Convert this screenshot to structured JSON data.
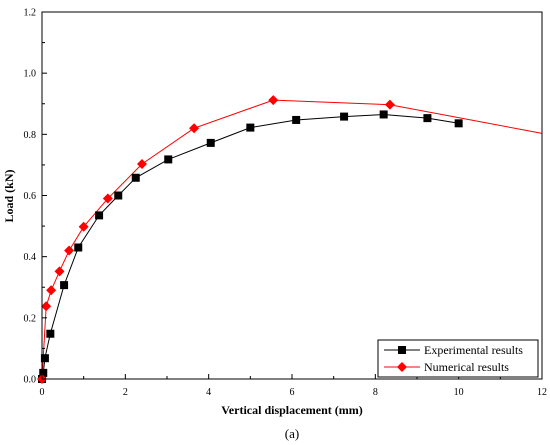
{
  "chart_data": {
    "type": "line",
    "xlabel": "Vertical displacement (mm)",
    "ylabel": "Load (kN)",
    "xlim": [
      0,
      12
    ],
    "ylim": [
      0,
      1.2
    ],
    "xticks": [
      "0",
      "2",
      "4",
      "6",
      "8",
      "10",
      "12"
    ],
    "yticks": [
      "0.0",
      "0.2",
      "0.4",
      "0.6",
      "0.8",
      "1.0",
      "1.2"
    ],
    "grid": false,
    "legend_position": "bottom-right",
    "caption": "(a)",
    "series": [
      {
        "name": "Experimental results",
        "color": "#000000",
        "marker": "square",
        "marker_color": "#000000",
        "x": [
          0.0,
          0.03,
          0.07,
          0.2,
          0.53,
          0.87,
          1.37,
          1.83,
          2.25,
          3.03,
          4.05,
          5.0,
          6.1,
          7.25,
          8.2,
          9.25,
          10.0
        ],
        "y": [
          0.0,
          0.02,
          0.068,
          0.148,
          0.307,
          0.43,
          0.535,
          0.6,
          0.658,
          0.718,
          0.772,
          0.822,
          0.847,
          0.858,
          0.865,
          0.853,
          0.836
        ]
      },
      {
        "name": "Numerical results",
        "color": "#ff0000",
        "marker": "diamond",
        "marker_color": "#ff0000",
        "x": [
          0.0,
          0.1,
          0.22,
          0.42,
          0.65,
          1.0,
          1.58,
          2.4,
          3.65,
          5.55,
          8.35,
          12.0
        ],
        "y": [
          0.0,
          0.238,
          0.29,
          0.352,
          0.42,
          0.498,
          0.59,
          0.703,
          0.82,
          0.912,
          0.897,
          0.803
        ],
        "markers_on_points": 11
      }
    ]
  }
}
